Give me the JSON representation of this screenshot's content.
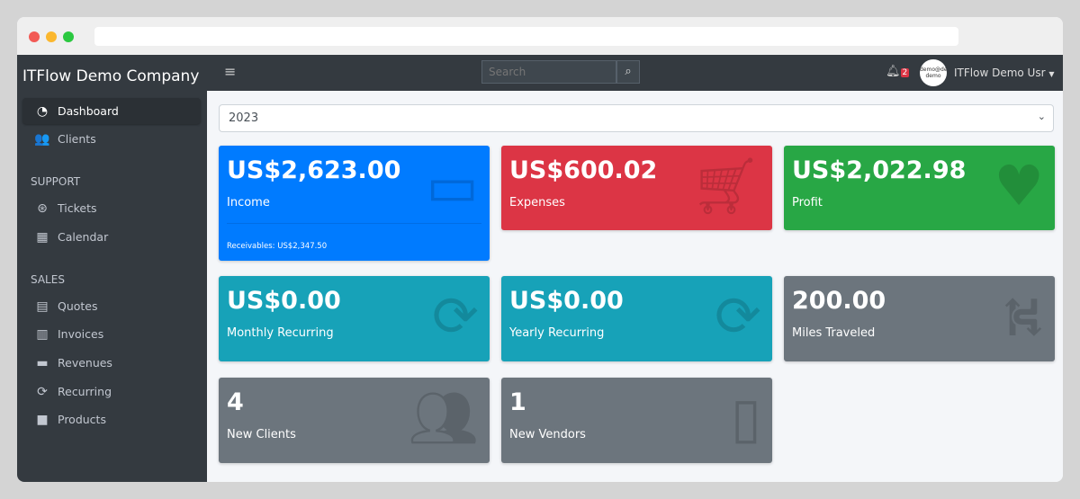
{
  "app": {
    "company": "ITFlow Demo Company"
  },
  "sidebar": {
    "items": [
      {
        "label": "Dashboard",
        "icon": "gauge-icon",
        "active": true
      },
      {
        "label": "Clients",
        "icon": "users-icon"
      }
    ],
    "support_header": "SUPPORT",
    "support": [
      {
        "label": "Tickets",
        "icon": "life-ring-icon"
      },
      {
        "label": "Calendar",
        "icon": "calendar-icon"
      }
    ],
    "sales_header": "SALES",
    "sales": [
      {
        "label": "Quotes",
        "icon": "file-icon"
      },
      {
        "label": "Invoices",
        "icon": "invoice-icon"
      },
      {
        "label": "Revenues",
        "icon": "credit-card-icon"
      },
      {
        "label": "Recurring",
        "icon": "sync-icon"
      },
      {
        "label": "Products",
        "icon": "box-icon"
      }
    ]
  },
  "topbar": {
    "search_placeholder": "Search",
    "notifications": "2",
    "avatar_text": "demo@demo demo",
    "user": "ITFlow Demo Usr"
  },
  "year": "2023",
  "cards": [
    {
      "value": "US$2,623.00",
      "label": "Income",
      "footer": "Receivables: US$2,347.50",
      "color": "#007bff"
    },
    {
      "value": "US$600.02",
      "label": "Expenses",
      "color": "#dc3545"
    },
    {
      "value": "US$2,022.98",
      "label": "Profit",
      "color": "#28a745"
    },
    {
      "value": "US$0.00",
      "label": "Monthly Recurring",
      "color": "#17a2b8"
    },
    {
      "value": "US$0.00",
      "label": "Yearly Recurring",
      "color": "#17a2b8"
    },
    {
      "value": "200.00",
      "label": "Miles Traveled",
      "color": "#6c757d"
    },
    {
      "value": "4",
      "label": "New Clients",
      "color": "#6c757d"
    },
    {
      "value": "1",
      "label": "New Vendors",
      "color": "#6c757d"
    }
  ]
}
